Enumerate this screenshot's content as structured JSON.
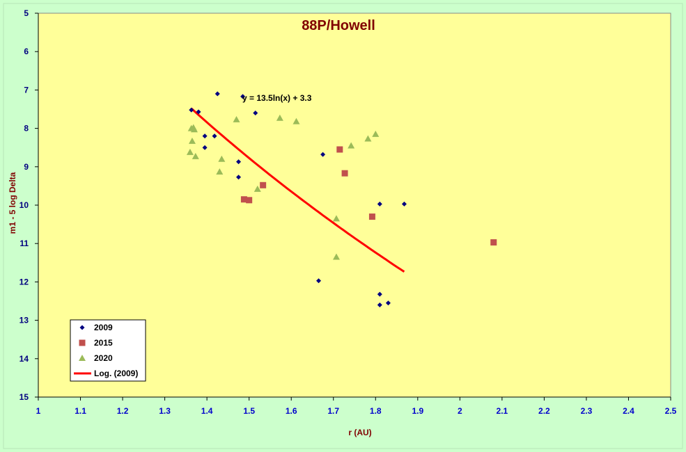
{
  "chart_data": {
    "type": "scatter",
    "title": "88P/Howell",
    "xlabel": "r (AU)",
    "ylabel": "m1 - 5 log Delta",
    "xlim": [
      1,
      2.5
    ],
    "ylim": [
      5,
      15
    ],
    "y_inverted": true,
    "x_ticks": [
      "1",
      "1.1",
      "1.2",
      "1.3",
      "1.4",
      "1.5",
      "1.6",
      "1.7",
      "1.8",
      "1.9",
      "2",
      "2.1",
      "2.2",
      "2.3",
      "2.4",
      "2.5"
    ],
    "y_ticks": [
      "5",
      "6",
      "7",
      "8",
      "9",
      "10",
      "11",
      "12",
      "13",
      "14",
      "15"
    ],
    "grid": false,
    "legend_position": "bottom-left",
    "series": [
      {
        "name": "2009",
        "marker": "diamond",
        "color": "#000080",
        "points": [
          [
            1.363,
            7.52
          ],
          [
            1.38,
            7.57
          ],
          [
            1.395,
            8.2
          ],
          [
            1.395,
            8.5
          ],
          [
            1.418,
            8.2
          ],
          [
            1.425,
            7.1
          ],
          [
            1.475,
            8.87
          ],
          [
            1.475,
            9.27
          ],
          [
            1.485,
            7.17
          ],
          [
            1.515,
            7.6
          ],
          [
            1.675,
            8.68
          ],
          [
            1.665,
            11.97
          ],
          [
            1.81,
            9.97
          ],
          [
            1.81,
            12.32
          ],
          [
            1.81,
            12.6
          ],
          [
            1.83,
            12.55
          ],
          [
            1.868,
            9.97
          ]
        ]
      },
      {
        "name": "2015",
        "marker": "square",
        "color": "#c0504d",
        "points": [
          [
            1.488,
            9.85
          ],
          [
            1.5,
            9.87
          ],
          [
            1.533,
            9.48
          ],
          [
            1.715,
            8.55
          ],
          [
            1.727,
            9.17
          ],
          [
            1.792,
            10.3
          ],
          [
            2.08,
            10.97
          ]
        ]
      },
      {
        "name": "2020",
        "marker": "triangle",
        "color": "#9bbb59",
        "points": [
          [
            1.36,
            8.62
          ],
          [
            1.363,
            8.0
          ],
          [
            1.365,
            8.33
          ],
          [
            1.368,
            7.98
          ],
          [
            1.37,
            8.03
          ],
          [
            1.373,
            8.73
          ],
          [
            1.43,
            9.13
          ],
          [
            1.435,
            8.8
          ],
          [
            1.47,
            7.77
          ],
          [
            1.52,
            9.58
          ],
          [
            1.573,
            7.73
          ],
          [
            1.612,
            7.82
          ],
          [
            1.707,
            10.35
          ],
          [
            1.707,
            11.35
          ],
          [
            1.742,
            8.45
          ],
          [
            1.782,
            8.27
          ],
          [
            1.8,
            8.15
          ]
        ]
      }
    ],
    "trendline": {
      "name": "Log. (2009)",
      "type": "logarithmic",
      "equation": "y = 13.5ln(x) + 3.3",
      "a": 13.5,
      "b": 3.3,
      "x_range": [
        1.363,
        1.868
      ],
      "color": "#ff0000"
    }
  }
}
